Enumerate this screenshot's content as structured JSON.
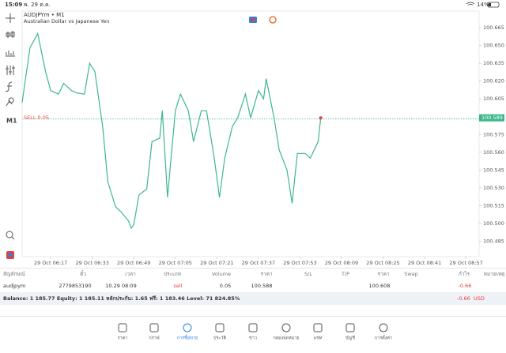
{
  "status_bar": {
    "time": "15:09",
    "date": "พ. 29 ต.ค.",
    "battery": "14%"
  },
  "chart_data": {
    "type": "line",
    "title": "AUDJPYm • M1",
    "subtitle": "Australian Dollar vs Japanese Yen",
    "timeframe": "M1",
    "color": "#3cb88a",
    "x": [
      "29 Oct 06:06",
      "29 Oct 06:09",
      "29 Oct 06:12",
      "29 Oct 06:15",
      "29 Oct 06:17",
      "29 Oct 06:20",
      "29 Oct 06:22",
      "29 Oct 06:25",
      "29 Oct 06:27",
      "29 Oct 06:30",
      "29 Oct 06:32",
      "29 Oct 06:34",
      "29 Oct 06:37",
      "29 Oct 06:39",
      "29 Oct 06:42",
      "29 Oct 06:44",
      "29 Oct 06:47",
      "29 Oct 06:48",
      "29 Oct 06:49",
      "29 Oct 06:51",
      "29 Oct 06:54",
      "29 Oct 06:56",
      "29 Oct 06:59",
      "29 Oct 07:00",
      "29 Oct 07:02",
      "29 Oct 07:05",
      "29 Oct 07:07",
      "29 Oct 07:10",
      "29 Oct 07:12",
      "29 Oct 07:15",
      "29 Oct 07:17",
      "29 Oct 07:20",
      "29 Oct 07:22",
      "29 Oct 07:24",
      "29 Oct 07:27",
      "29 Oct 07:29",
      "29 Oct 07:32",
      "29 Oct 07:34",
      "29 Oct 07:37",
      "29 Oct 07:39",
      "29 Oct 07:40",
      "29 Oct 07:43",
      "29 Oct 07:45",
      "29 Oct 07:48",
      "29 Oct 07:50",
      "29 Oct 07:52",
      "29 Oct 07:55",
      "29 Oct 07:57",
      "29 Oct 08:00",
      "29 Oct 08:01"
    ],
    "values": [
      100.602,
      100.648,
      100.66,
      100.628,
      100.612,
      100.609,
      100.618,
      100.612,
      100.61,
      100.609,
      100.635,
      100.628,
      100.582,
      100.535,
      100.514,
      100.51,
      100.502,
      100.496,
      100.499,
      100.524,
      100.529,
      100.569,
      100.572,
      100.595,
      100.522,
      100.595,
      100.609,
      100.595,
      100.569,
      100.595,
      100.595,
      100.555,
      100.522,
      100.555,
      100.582,
      100.589,
      100.609,
      100.589,
      100.612,
      100.605,
      100.622,
      100.589,
      100.562,
      100.545,
      100.517,
      100.559,
      100.559,
      100.555,
      100.569,
      100.589
    ],
    "xlim": [
      "29 Oct 06:06",
      "29 Oct 09:02"
    ],
    "xticks": [
      "29 Oct 06:17",
      "29 Oct 06:33",
      "29 Oct 06:49",
      "29 Oct 07:05",
      "29 Oct 07:21",
      "29 Oct 07:37",
      "29 Oct 07:53",
      "29 Oct 08:09",
      "29 Oct 08:25",
      "29 Oct 08:41",
      "29 Oct 08:57"
    ],
    "ylim": [
      100.472,
      100.679
    ],
    "yticks": [
      {
        "value": 100.665,
        "label": "100.665"
      },
      {
        "value": 100.65,
        "label": "100.650"
      },
      {
        "value": 100.635,
        "label": "100.635"
      },
      {
        "value": 100.62,
        "label": "100.620"
      },
      {
        "value": 100.605,
        "label": "100.605"
      },
      {
        "value": 100.59,
        "label": "100.590"
      },
      {
        "value": 100.575,
        "label": "100.575"
      },
      {
        "value": 100.56,
        "label": "100.560"
      },
      {
        "value": 100.545,
        "label": "100.545"
      },
      {
        "value": 100.53,
        "label": "100.530"
      },
      {
        "value": 100.515,
        "label": "100.515"
      },
      {
        "value": 100.5,
        "label": "100.500"
      },
      {
        "value": 100.485,
        "label": "100.485"
      }
    ],
    "order_line": {
      "label": "SELL 0.05",
      "color": "#e04040"
    }
  },
  "table": {
    "headers": [
      "สัญลักษณ์",
      "ตั๋ว",
      "เวลา",
      "ประเภท",
      "Volume",
      "ราคา",
      "S/L",
      "T/P",
      "ราคา",
      "Swap",
      "กำไร",
      "หมายเหตุ"
    ]
  },
  "positions": [
    {
      "symbol": "audjpym",
      "ticket": "2779853190",
      "time": "10.29 08:09",
      "type": "sell",
      "volume": "0.05",
      "price": 100.588,
      "current": "100.608",
      "profit": "-0.66"
    }
  ],
  "summary": {
    "text": "Balance: 1 185.77 Equity: 1 185.11 หลักประกัน: 1.65 ฟรี: 1 183.46 Level: 71 824.85%",
    "profit": "-0.66",
    "currency": "USD"
  },
  "nav": {
    "items": [
      "ราคา",
      "กราฟ",
      "การซื้อขาย",
      "ประวัติ",
      "ข่าว",
      "กล่องจดหมาย",
      "แชท",
      "บัญชี",
      "การตั้งค่า"
    ],
    "active": 2
  }
}
